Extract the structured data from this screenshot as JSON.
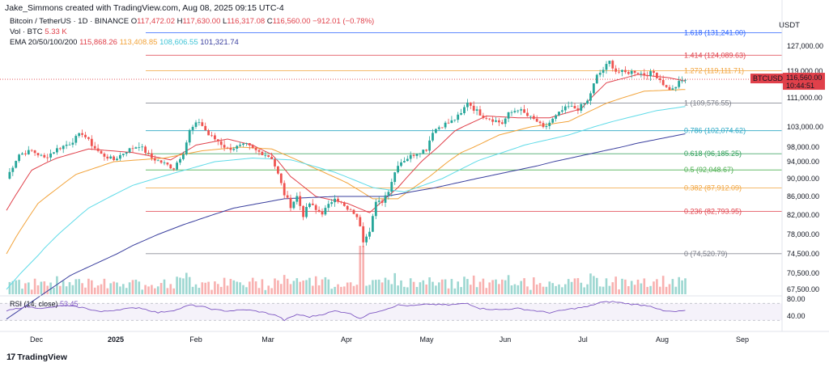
{
  "header": {
    "credit": "Jake_Simmons created with TradingView.com, Aug 08, 2025 09:15 UTC-4",
    "symbol_line": "Bitcoin / TetherUS · 1D · BINANCE",
    "ohlc": {
      "o_label": "O",
      "o": "117,472.02",
      "h_label": "H",
      "h": "117,630.00",
      "l_label": "L",
      "l": "116,317.08",
      "c_label": "C",
      "c": "116,560.00",
      "change": "−912.01 (−0.78%)"
    },
    "volume_label": "Vol · BTC",
    "volume_value": "5.33 K",
    "ema_label": "EMA 20/50/100/200",
    "ema_values": [
      "115,868.26",
      "113,408.85",
      "108,606.55",
      "101,321.74"
    ],
    "ema_colors": [
      "#e0404a",
      "#f2a33a",
      "#5fdbe8",
      "#3a3f9e"
    ],
    "currency": "USDT"
  },
  "price_tag": {
    "symbol": "BTCUSDT",
    "price": "116,560.00",
    "countdown": "10:44:51",
    "color": "#e0404a"
  },
  "colors": {
    "up": "#26a69a",
    "down": "#ef5350",
    "rsi": "#7e57c2"
  },
  "chart_data": {
    "type": "candlestick",
    "title": "",
    "y_ticks": [
      127000,
      119000,
      111000,
      103000,
      98000,
      94000,
      90000,
      86000,
      82000,
      78000,
      74500,
      70500,
      67500
    ],
    "y_tick_labels": [
      "127,000.00",
      "119,000.00",
      "111,000.00",
      "103,000.00",
      "98,000.00",
      "94,000.00",
      "90,000.00",
      "86,000.00",
      "82,000.00",
      "78,000.00",
      "74,500.00",
      "70,500.00",
      "67,500.00"
    ],
    "x_labels": [
      "Dec",
      "2025",
      "Feb",
      "Mar",
      "Apr",
      "May",
      "Jun",
      "Jul",
      "Aug",
      "Sep"
    ],
    "fib_levels": [
      {
        "ratio": "1.618",
        "price": 131241.0,
        "label": "1.618 (131,241.00)",
        "color": "#2962ff"
      },
      {
        "ratio": "1.414",
        "price": 124089.63,
        "label": "1.414 (124,089.63)",
        "color": "#e0404a"
      },
      {
        "ratio": "1.272",
        "price": 119111.71,
        "label": "1.272 (119,111.71)",
        "color": "#f2a33a"
      },
      {
        "ratio": "1",
        "price": 109576.55,
        "label": "1 (109,576.55)",
        "color": "#787b86"
      },
      {
        "ratio": "0.786",
        "price": 102074.62,
        "label": "0.786 (102,074.62)",
        "color": "#26a6c4"
      },
      {
        "ratio": "0.618",
        "price": 96185.25,
        "label": "0.618 (96,185.25)",
        "color": "#2a9d55"
      },
      {
        "ratio": "0.5",
        "price": 92048.67,
        "label": "0.5 (92,048.67)",
        "color": "#4caf50"
      },
      {
        "ratio": "0.382",
        "price": 87912.09,
        "label": "0.382 (87,912.09)",
        "color": "#f2a33a"
      },
      {
        "ratio": "0.236",
        "price": 82793.95,
        "label": "0.236 (82,793.95)",
        "color": "#e0404a"
      },
      {
        "ratio": "0",
        "price": 74520.79,
        "label": "0 (74,520.79)",
        "color": "#787b86"
      }
    ],
    "close_path": [
      [
        0,
        90000
      ],
      [
        4,
        96000
      ],
      [
        8,
        97000
      ],
      [
        12,
        95000
      ],
      [
        16,
        97500
      ],
      [
        20,
        99000
      ],
      [
        24,
        101500
      ],
      [
        26,
        99500
      ],
      [
        30,
        96000
      ],
      [
        34,
        94500
      ],
      [
        38,
        97000
      ],
      [
        42,
        98500
      ],
      [
        46,
        95000
      ],
      [
        50,
        93500
      ],
      [
        53,
        92500
      ],
      [
        56,
        96500
      ],
      [
        58,
        102000
      ],
      [
        61,
        104500
      ],
      [
        64,
        101000
      ],
      [
        67,
        99500
      ],
      [
        70,
        97500
      ],
      [
        73,
        98000
      ],
      [
        76,
        98500
      ],
      [
        79,
        97000
      ],
      [
        82,
        96000
      ],
      [
        84,
        95000
      ],
      [
        86,
        91000
      ],
      [
        88,
        86500
      ],
      [
        90,
        84000
      ],
      [
        92,
        86000
      ],
      [
        94,
        82000
      ],
      [
        96,
        84500
      ],
      [
        98,
        83000
      ],
      [
        100,
        82500
      ],
      [
        102,
        84000
      ],
      [
        104,
        86000
      ],
      [
        106,
        84500
      ],
      [
        108,
        83000
      ],
      [
        110,
        82500
      ],
      [
        112,
        80000
      ],
      [
        113,
        77000
      ],
      [
        115,
        79000
      ],
      [
        117,
        84500
      ],
      [
        119,
        85000
      ],
      [
        121,
        87500
      ],
      [
        124,
        93500
      ],
      [
        127,
        95000
      ],
      [
        130,
        96500
      ],
      [
        133,
        97500
      ],
      [
        135,
        102000
      ],
      [
        138,
        103500
      ],
      [
        141,
        104500
      ],
      [
        144,
        106500
      ],
      [
        146,
        110000
      ],
      [
        148,
        108000
      ],
      [
        151,
        106000
      ],
      [
        154,
        105000
      ],
      [
        157,
        104000
      ],
      [
        159,
        106500
      ],
      [
        162,
        108000
      ],
      [
        165,
        106000
      ],
      [
        168,
        104500
      ],
      [
        170,
        102500
      ],
      [
        173,
        105000
      ],
      [
        176,
        107500
      ],
      [
        178,
        108500
      ],
      [
        181,
        108000
      ],
      [
        184,
        110000
      ],
      [
        187,
        117500
      ],
      [
        189,
        119500
      ],
      [
        191,
        122000
      ],
      [
        193,
        119000
      ],
      [
        196,
        118500
      ],
      [
        199,
        119000
      ],
      [
        202,
        118000
      ],
      [
        205,
        118500
      ],
      [
        207,
        116500
      ],
      [
        209,
        114000
      ],
      [
        211,
        113500
      ],
      [
        213,
        115500
      ],
      [
        215,
        116560
      ]
    ],
    "ema_series": [
      {
        "name": "EMA 20",
        "color": "#e0404a",
        "points": [
          [
            0,
            83000
          ],
          [
            8,
            92000
          ],
          [
            16,
            95000
          ],
          [
            26,
            97500
          ],
          [
            40,
            96500
          ],
          [
            52,
            94500
          ],
          [
            60,
            98500
          ],
          [
            70,
            100000
          ],
          [
            78,
            98500
          ],
          [
            84,
            96000
          ],
          [
            90,
            90500
          ],
          [
            98,
            86000
          ],
          [
            108,
            84500
          ],
          [
            115,
            82500
          ],
          [
            124,
            88000
          ],
          [
            132,
            94500
          ],
          [
            142,
            102000
          ],
          [
            152,
            106000
          ],
          [
            162,
            105500
          ],
          [
            172,
            105500
          ],
          [
            182,
            108000
          ],
          [
            190,
            115500
          ],
          [
            200,
            118000
          ],
          [
            210,
            117000
          ],
          [
            215,
            116000
          ]
        ]
      },
      {
        "name": "EMA 50",
        "color": "#f2a33a",
        "points": [
          [
            0,
            74500
          ],
          [
            10,
            84500
          ],
          [
            22,
            91000
          ],
          [
            34,
            94000
          ],
          [
            50,
            95000
          ],
          [
            62,
            97000
          ],
          [
            74,
            98000
          ],
          [
            84,
            97500
          ],
          [
            96,
            93000
          ],
          [
            108,
            89000
          ],
          [
            116,
            85500
          ],
          [
            124,
            85500
          ],
          [
            134,
            90500
          ],
          [
            144,
            96500
          ],
          [
            156,
            101000
          ],
          [
            166,
            103000
          ],
          [
            178,
            104500
          ],
          [
            190,
            109500
          ],
          [
            202,
            113000
          ],
          [
            215,
            113500
          ]
        ]
      },
      {
        "name": "EMA 100",
        "color": "#5fdbe8",
        "points": [
          [
            0,
            67500
          ],
          [
            12,
            75500
          ],
          [
            26,
            83500
          ],
          [
            40,
            88500
          ],
          [
            54,
            91500
          ],
          [
            66,
            94000
          ],
          [
            78,
            95000
          ],
          [
            90,
            94500
          ],
          [
            104,
            91500
          ],
          [
            116,
            88000
          ],
          [
            126,
            87000
          ],
          [
            138,
            90000
          ],
          [
            150,
            94500
          ],
          [
            164,
            98500
          ],
          [
            178,
            101000
          ],
          [
            192,
            104500
          ],
          [
            206,
            107500
          ],
          [
            215,
            108600
          ]
        ]
      },
      {
        "name": "EMA 200",
        "color": "#3a3f9e",
        "points": [
          [
            0,
            62000
          ],
          [
            20,
            70000
          ],
          [
            40,
            76000
          ],
          [
            56,
            80000
          ],
          [
            72,
            83500
          ],
          [
            88,
            85500
          ],
          [
            104,
            86000
          ],
          [
            120,
            86000
          ],
          [
            136,
            88000
          ],
          [
            152,
            90500
          ],
          [
            168,
            93000
          ],
          [
            184,
            96000
          ],
          [
            200,
            99000
          ],
          [
            215,
            101300
          ]
        ]
      }
    ],
    "rsi": {
      "label": "RSI (14, close)",
      "value": "53.45",
      "y_ticks": [
        80,
        40
      ],
      "y_tick_labels": [
        "80.00",
        "40.00"
      ],
      "points": [
        [
          0,
          52
        ],
        [
          6,
          62
        ],
        [
          12,
          58
        ],
        [
          18,
          65
        ],
        [
          24,
          60
        ],
        [
          30,
          50
        ],
        [
          36,
          56
        ],
        [
          42,
          60
        ],
        [
          48,
          48
        ],
        [
          54,
          55
        ],
        [
          58,
          66
        ],
        [
          62,
          62
        ],
        [
          66,
          55
        ],
        [
          70,
          52
        ],
        [
          76,
          55
        ],
        [
          82,
          48
        ],
        [
          86,
          40
        ],
        [
          88,
          30
        ],
        [
          92,
          44
        ],
        [
          96,
          38
        ],
        [
          100,
          44
        ],
        [
          104,
          52
        ],
        [
          108,
          48
        ],
        [
          112,
          35
        ],
        [
          116,
          48
        ],
        [
          120,
          56
        ],
        [
          124,
          66
        ],
        [
          128,
          64
        ],
        [
          134,
          68
        ],
        [
          140,
          66
        ],
        [
          146,
          70
        ],
        [
          150,
          58
        ],
        [
          156,
          55
        ],
        [
          162,
          58
        ],
        [
          168,
          52
        ],
        [
          172,
          48
        ],
        [
          178,
          56
        ],
        [
          184,
          62
        ],
        [
          188,
          72
        ],
        [
          192,
          74
        ],
        [
          198,
          68
        ],
        [
          204,
          64
        ],
        [
          208,
          52
        ],
        [
          212,
          50
        ],
        [
          215,
          53.45
        ]
      ]
    }
  },
  "brand": {
    "logo": "17",
    "name": "TradingView"
  }
}
